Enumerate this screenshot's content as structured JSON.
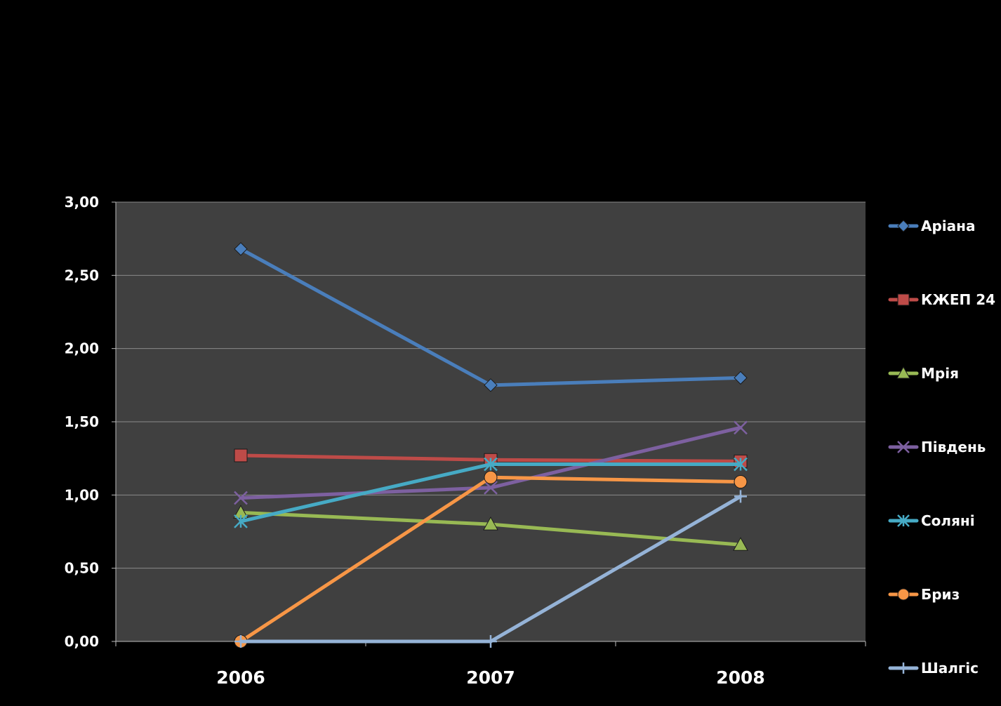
{
  "chart_data": {
    "type": "line",
    "categories": [
      "2006",
      "2007",
      "2008"
    ],
    "ylim": [
      0,
      3
    ],
    "yticks": [
      "0,00",
      "0,50",
      "1,00",
      "1,50",
      "2,00",
      "2,50",
      "3,00"
    ],
    "grid": true,
    "legend_position": "right",
    "plot_background": "#404040",
    "series": [
      {
        "name": "Аріана",
        "values": [
          2.68,
          1.75,
          1.8
        ],
        "color": "#4A7EBB",
        "marker": "diamond"
      },
      {
        "name": "КЖЕП 24",
        "values": [
          1.27,
          1.24,
          1.23
        ],
        "color": "#BE4B48",
        "marker": "square"
      },
      {
        "name": "Мрія",
        "values": [
          0.88,
          0.8,
          0.66
        ],
        "color": "#98B954",
        "marker": "triangle"
      },
      {
        "name": "Південь",
        "values": [
          0.98,
          1.05,
          1.46
        ],
        "color": "#7D60A0",
        "marker": "x"
      },
      {
        "name": "Соляні",
        "values": [
          0.82,
          1.21,
          1.21
        ],
        "color": "#46AAC5",
        "marker": "star"
      },
      {
        "name": "Бриз",
        "values": [
          0.0,
          1.12,
          1.09
        ],
        "color": "#F79646",
        "marker": "circle"
      },
      {
        "name": "Шалгіс",
        "values": [
          0.0,
          0.0,
          0.99
        ],
        "color": "#95B3D7",
        "marker": "plus"
      }
    ]
  }
}
